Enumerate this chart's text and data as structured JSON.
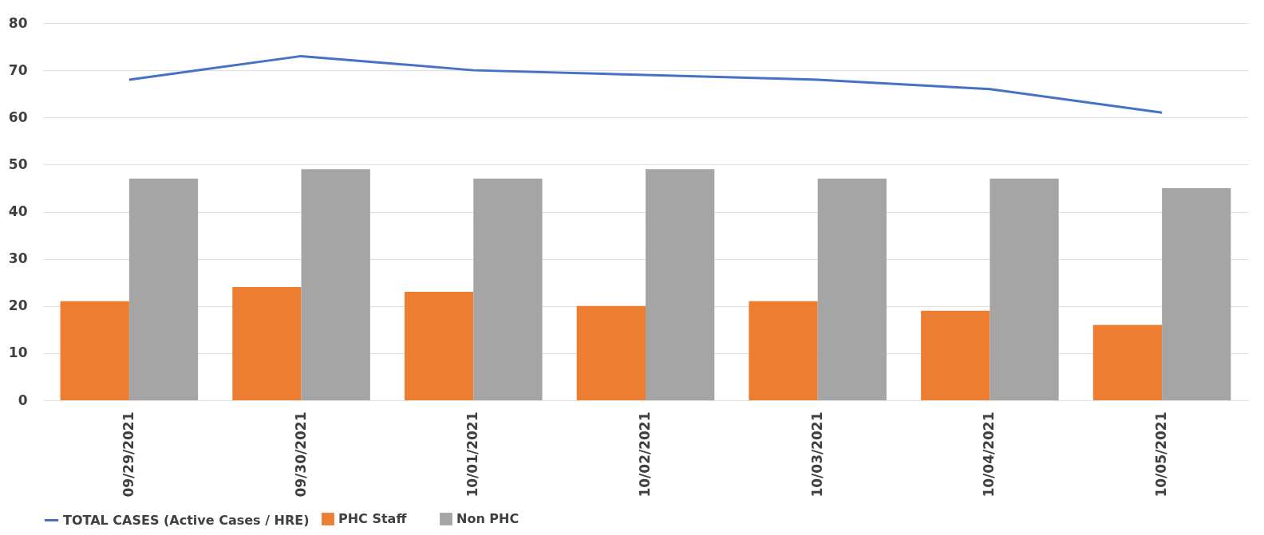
{
  "chart_data": {
    "type": "bar",
    "categories": [
      "09/29/2021",
      "09/30/2021",
      "10/01/2021",
      "10/02/2021",
      "10/03/2021",
      "10/04/2021",
      "10/05/2021"
    ],
    "series": [
      {
        "name": "PHC Staff",
        "color": "#ed7d31",
        "values": [
          21,
          24,
          23,
          20,
          21,
          19,
          16
        ]
      },
      {
        "name": "Non PHC",
        "color": "#a5a5a5",
        "values": [
          47,
          49,
          47,
          49,
          47,
          47,
          45
        ]
      },
      {
        "name": "TOTAL CASES  (Active Cases / HRE)",
        "type": "line",
        "color": "#4472c4",
        "values": [
          68,
          73,
          70,
          69,
          68,
          66,
          61
        ]
      }
    ],
    "ylim": [
      0,
      80
    ],
    "yticks": [
      0,
      10,
      20,
      30,
      40,
      50,
      60,
      70,
      80
    ],
    "grid": "y",
    "legend": "bottom"
  }
}
